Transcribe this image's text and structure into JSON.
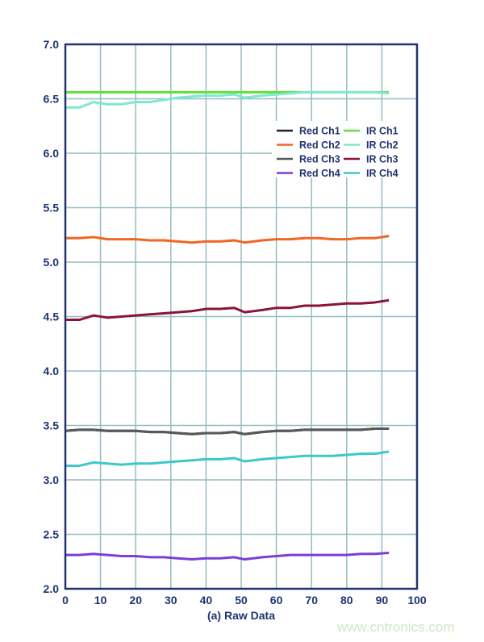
{
  "chart_data": {
    "type": "line",
    "title": "",
    "xlabel": "(a) Raw Data",
    "ylabel": "",
    "xlim": [
      0,
      100
    ],
    "ylim": [
      2.0,
      7.0
    ],
    "xticks": [
      "0",
      "10",
      "20",
      "30",
      "40",
      "50",
      "60",
      "70",
      "80",
      "90",
      "100"
    ],
    "yticks": [
      "2.0",
      "2.5",
      "3.0",
      "3.5",
      "4.0",
      "4.5",
      "5.0",
      "5.5",
      "6.0",
      "6.5",
      "7.0"
    ],
    "grid": true,
    "legend_position": "upper-right",
    "x": [
      0,
      4,
      8,
      12,
      16,
      20,
      24,
      28,
      32,
      36,
      40,
      44,
      48,
      51,
      56,
      60,
      64,
      68,
      72,
      76,
      80,
      84,
      88,
      92
    ],
    "series": [
      {
        "name": "Red Ch1",
        "color": "#222222",
        "values": [
          3.45,
          3.46,
          3.46,
          3.45,
          3.45,
          3.45,
          3.44,
          3.44,
          3.43,
          3.42,
          3.43,
          3.43,
          3.44,
          3.42,
          3.44,
          3.45,
          3.45,
          3.46,
          3.46,
          3.46,
          3.46,
          3.46,
          3.47,
          3.47
        ]
      },
      {
        "name": "Red Ch2",
        "color": "#f26522",
        "values": [
          5.22,
          5.22,
          5.23,
          5.21,
          5.21,
          5.21,
          5.2,
          5.2,
          5.19,
          5.18,
          5.19,
          5.19,
          5.2,
          5.18,
          5.2,
          5.21,
          5.21,
          5.22,
          5.22,
          5.21,
          5.21,
          5.22,
          5.22,
          5.24
        ]
      },
      {
        "name": "Red Ch3",
        "color": "#555a5a",
        "values": [
          3.45,
          3.46,
          3.46,
          3.45,
          3.45,
          3.45,
          3.44,
          3.44,
          3.43,
          3.42,
          3.43,
          3.43,
          3.44,
          3.42,
          3.44,
          3.45,
          3.45,
          3.46,
          3.46,
          3.46,
          3.46,
          3.46,
          3.47,
          3.47
        ]
      },
      {
        "name": "Red Ch4",
        "color": "#7b3fd6",
        "values": [
          2.31,
          2.31,
          2.32,
          2.31,
          2.3,
          2.3,
          2.29,
          2.29,
          2.28,
          2.27,
          2.28,
          2.28,
          2.29,
          2.27,
          2.29,
          2.3,
          2.31,
          2.31,
          2.31,
          2.31,
          2.31,
          2.32,
          2.32,
          2.33
        ]
      },
      {
        "name": "IR Ch1",
        "color": "#5fe03a",
        "values": [
          6.56,
          6.56,
          6.56,
          6.56,
          6.56,
          6.56,
          6.56,
          6.56,
          6.56,
          6.56,
          6.56,
          6.56,
          6.56,
          6.56,
          6.56,
          6.56,
          6.56,
          6.56,
          6.56,
          6.56,
          6.56,
          6.56,
          6.56,
          6.56
        ]
      },
      {
        "name": "IR Ch2",
        "color": "#7fe8cf",
        "values": [
          6.42,
          6.42,
          6.47,
          6.45,
          6.45,
          6.47,
          6.47,
          6.49,
          6.51,
          6.52,
          6.53,
          6.53,
          6.54,
          6.51,
          6.53,
          6.54,
          6.55,
          6.56,
          6.56,
          6.56,
          6.56,
          6.56,
          6.56,
          6.55
        ]
      },
      {
        "name": "IR Ch3",
        "color": "#8a1538",
        "values": [
          4.47,
          4.47,
          4.51,
          4.49,
          4.5,
          4.51,
          4.52,
          4.53,
          4.54,
          4.55,
          4.57,
          4.57,
          4.58,
          4.54,
          4.56,
          4.58,
          4.58,
          4.6,
          4.6,
          4.61,
          4.62,
          4.62,
          4.63,
          4.65
        ]
      },
      {
        "name": "IR Ch4",
        "color": "#3cc8c8",
        "values": [
          3.13,
          3.13,
          3.16,
          3.15,
          3.14,
          3.15,
          3.15,
          3.16,
          3.17,
          3.18,
          3.19,
          3.19,
          3.2,
          3.17,
          3.19,
          3.2,
          3.21,
          3.22,
          3.22,
          3.22,
          3.23,
          3.24,
          3.24,
          3.26
        ]
      }
    ]
  },
  "watermark": "www.cntronics.com",
  "colors": {
    "axis": "#1e3570",
    "grid": "#95bcc4"
  }
}
